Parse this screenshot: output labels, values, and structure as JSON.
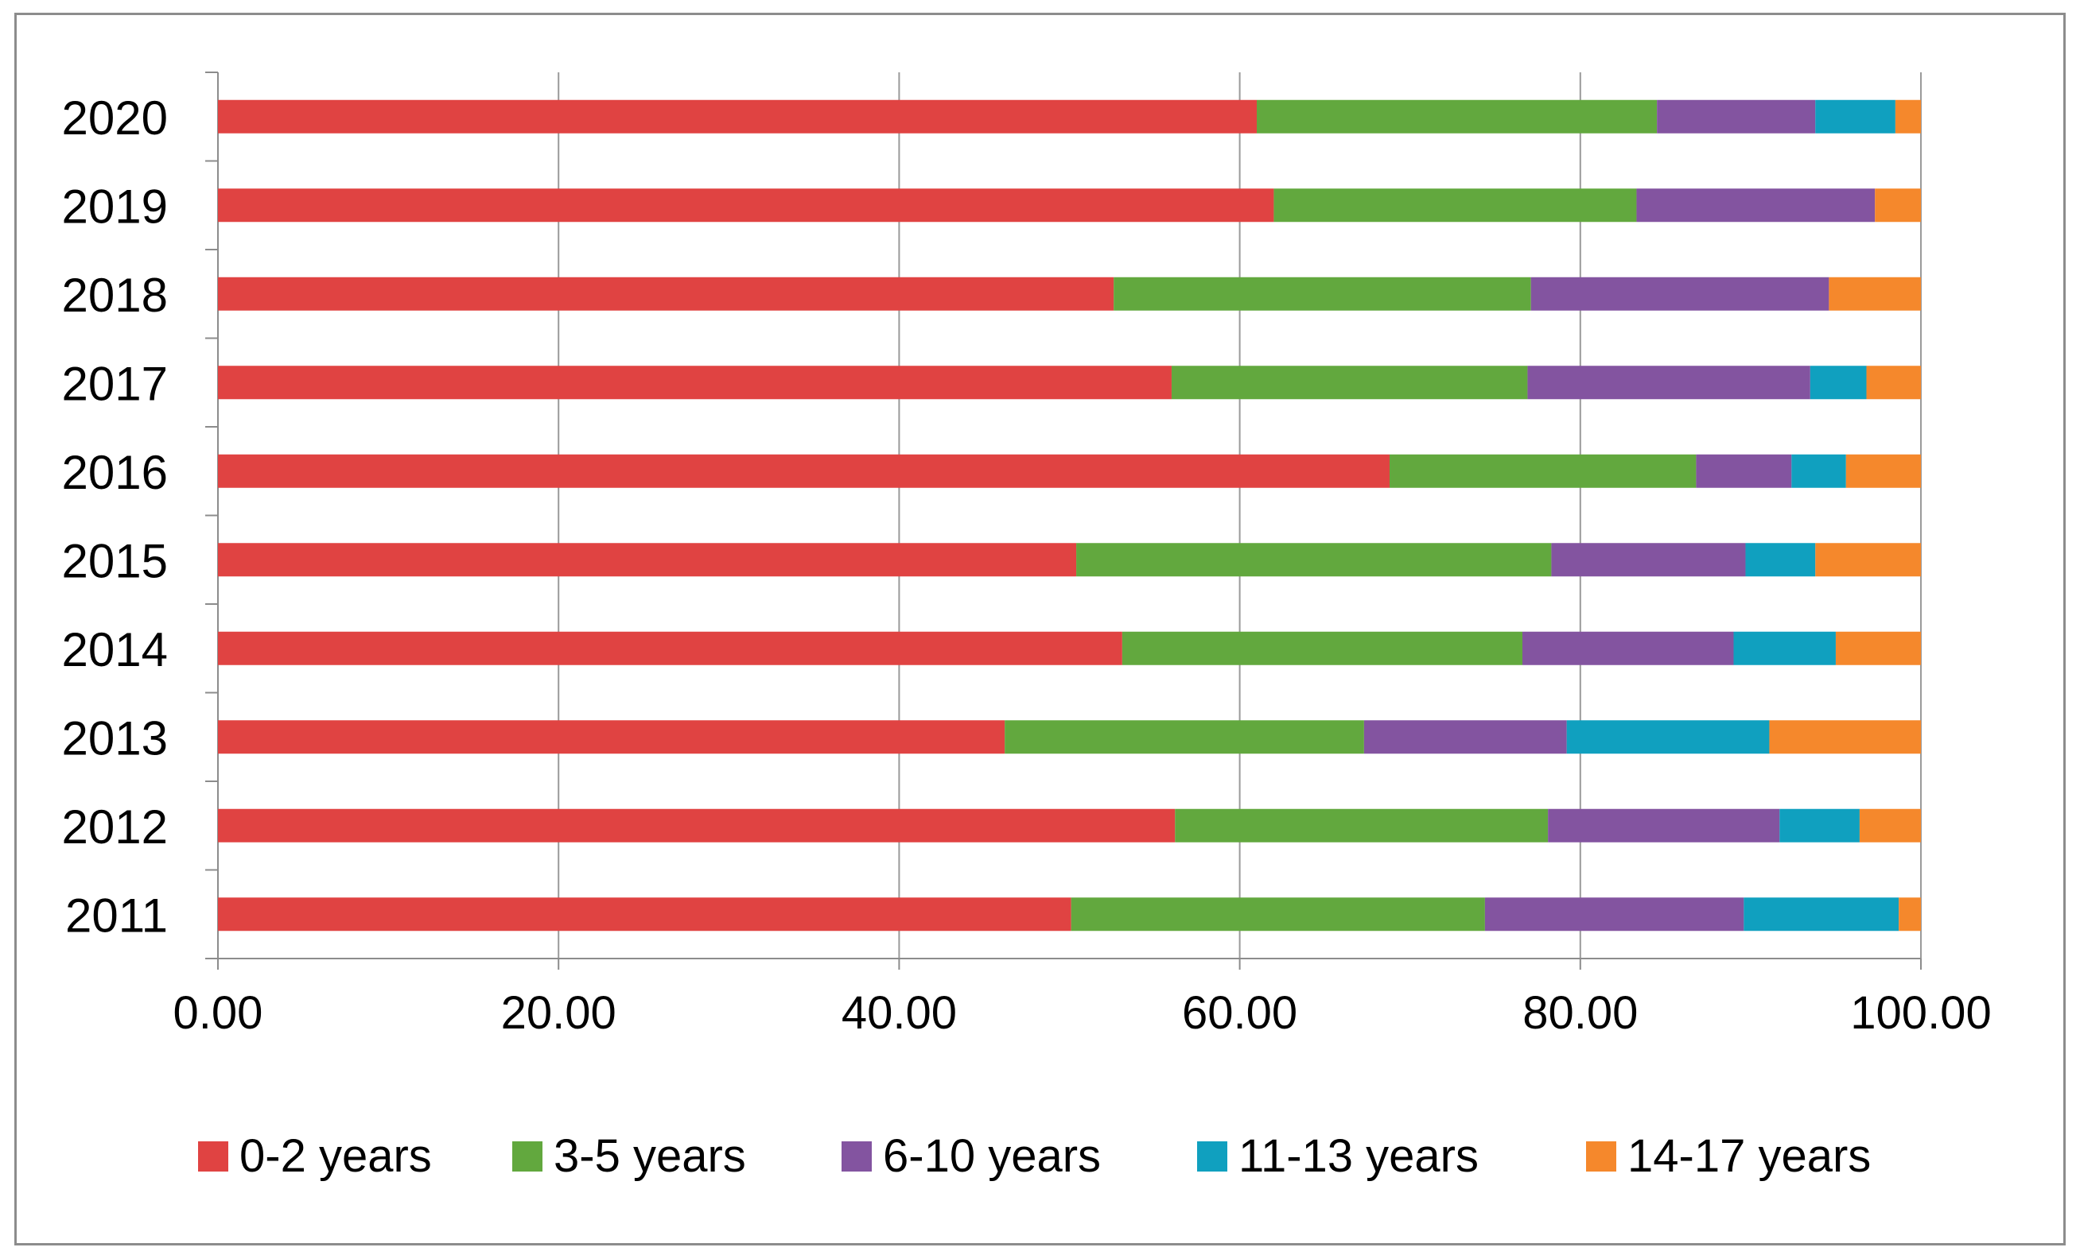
{
  "chart_data": {
    "type": "bar",
    "orientation": "horizontal",
    "stacked": true,
    "title": "",
    "xlabel": "",
    "ylabel": "",
    "xlim": [
      0,
      100
    ],
    "x_ticks": [
      "0.00",
      "20.00",
      "40.00",
      "60.00",
      "80.00",
      "100.00"
    ],
    "x_tick_values": [
      0,
      20,
      40,
      60,
      80,
      100
    ],
    "grid": "vertical",
    "legend_position": "bottom",
    "categories": [
      "2020",
      "2019",
      "2018",
      "2017",
      "2016",
      "2015",
      "2014",
      "2013",
      "2012",
      "2011"
    ],
    "series": [
      {
        "name": "0-2 years",
        "color": "#e04342",
        "values": [
          61.0,
          62.0,
          52.6,
          56.0,
          68.8,
          50.4,
          53.1,
          46.2,
          56.2,
          50.1
        ]
      },
      {
        "name": "3-5 years",
        "color": "#62a83e",
        "values": [
          23.5,
          21.3,
          24.5,
          20.9,
          18.0,
          27.9,
          23.5,
          21.1,
          21.9,
          24.3
        ]
      },
      {
        "name": "6-10 years",
        "color": "#8354a0",
        "values": [
          9.3,
          14.0,
          17.5,
          16.6,
          5.6,
          11.4,
          12.4,
          11.9,
          13.6,
          15.2
        ]
      },
      {
        "name": "11-13 years",
        "color": "#10a0bf",
        "values": [
          4.7,
          0,
          0,
          3.3,
          3.2,
          4.1,
          6.0,
          11.9,
          4.7,
          9.1
        ]
      },
      {
        "name": "14-17 years",
        "color": "#f5882c",
        "values": [
          1.5,
          2.7,
          5.4,
          3.2,
          4.4,
          6.2,
          5.0,
          8.9,
          3.6,
          1.3
        ]
      }
    ]
  }
}
